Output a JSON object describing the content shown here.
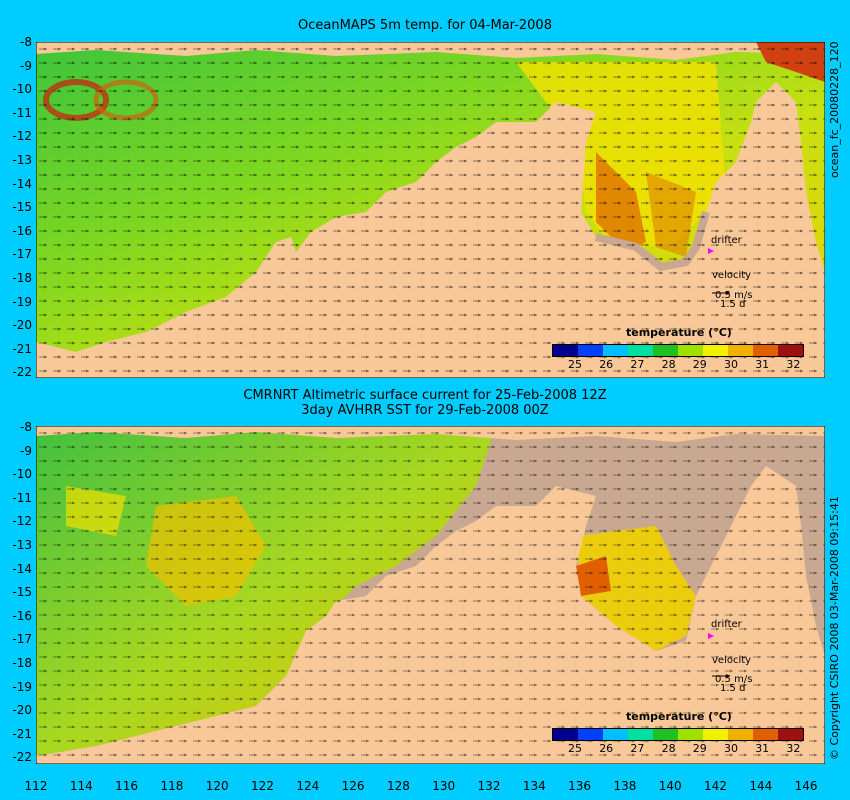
{
  "top_panel": {
    "title": "OceanMAPS 5m temp. for 04-Mar-2008",
    "side_label": "ocean_fc_20080228_120"
  },
  "bottom_panel": {
    "title_line1": "CMRNRT Altimetric surface current for 25-Feb-2008 12Z",
    "title_line2": "3day AVHRR SST for 29-Feb-2008 00Z",
    "side_label": "© Copyright CSIRO 2008   03-Mar-2008 09:15:41"
  },
  "y_axis_labels": [
    "-8",
    "-9",
    "-10",
    "-11",
    "-12",
    "-13",
    "-14",
    "-15",
    "-16",
    "-17",
    "-18",
    "-19",
    "-20",
    "-21",
    "-22"
  ],
  "x_axis_labels": [
    "112",
    "114",
    "116",
    "118",
    "120",
    "122",
    "124",
    "126",
    "128",
    "130",
    "132",
    "134",
    "136",
    "138",
    "140",
    "142",
    "144",
    "146"
  ],
  "legend": {
    "title": "temperature (°C)",
    "ticks": [
      "25",
      "26",
      "27",
      "28",
      "29",
      "30",
      "31",
      "32"
    ],
    "colors": [
      "#00008f",
      "#0040ff",
      "#00bfff",
      "#00e0a0",
      "#20c020",
      "#a0e000",
      "#f0f000",
      "#f0b000",
      "#e06000",
      "#a01010"
    ]
  },
  "annotations": {
    "drifter_label": "drifter",
    "velocity_label": "velocity",
    "velocity_scale": "0.5 m/s",
    "velocity_days": "1.5 d"
  },
  "colors": {
    "background": "#00ccff",
    "land": "#f8c898",
    "shelf": "#c8a890",
    "ocean_warm": "#f0e000",
    "ocean_mid": "#40c820",
    "drifter": "#ff00ff"
  }
}
